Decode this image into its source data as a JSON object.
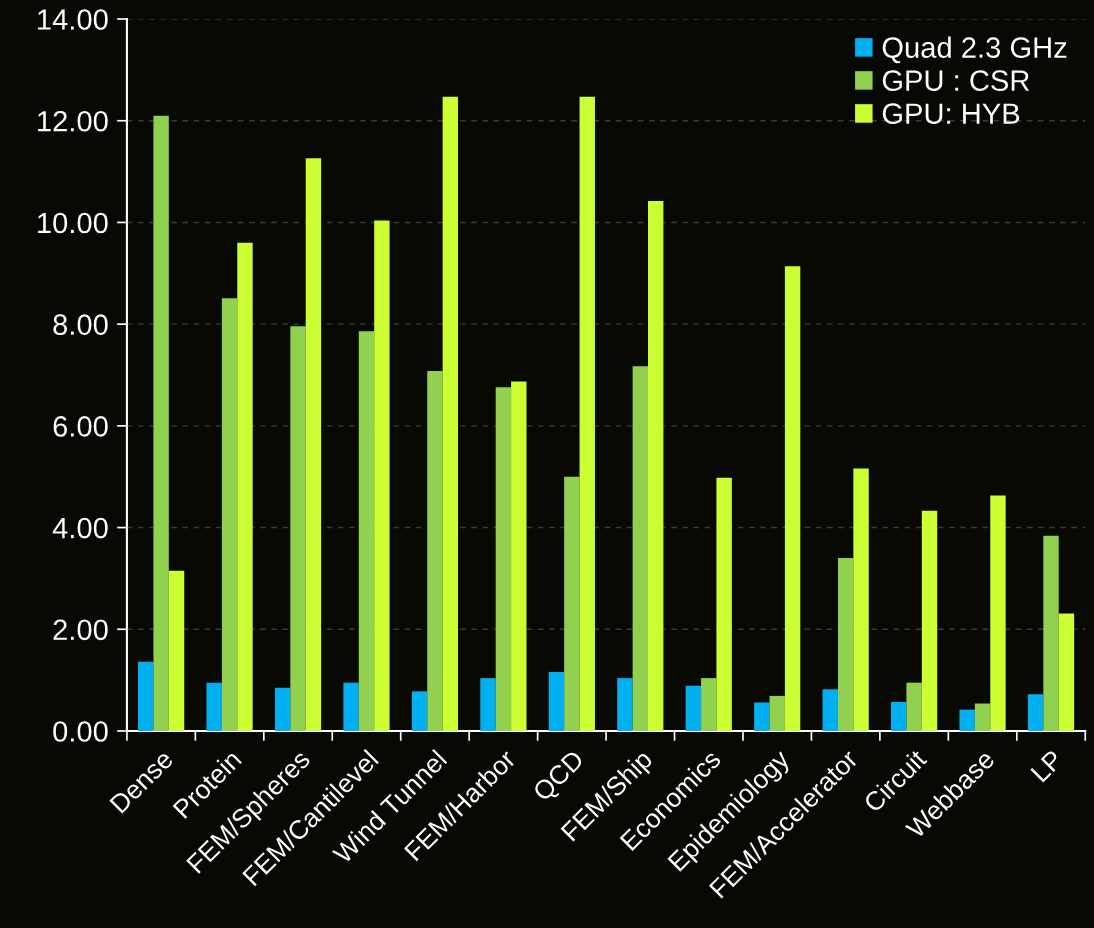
{
  "chart_data": {
    "type": "bar",
    "categories": [
      "Dense",
      "Protein",
      "FEM/Spheres",
      "FEM/Cantilevel",
      "Wind Tunnel",
      "FEM/Harbor",
      "QCD",
      "FEM/Ship",
      "Economics",
      "Epidemiology",
      "FEM/Accelerator",
      "Circuit",
      "Webbase",
      "LP"
    ],
    "series": [
      {
        "name": "Quad 2.3 GHz",
        "color": "#00b0f0",
        "values": [
          1.36,
          0.95,
          0.85,
          0.95,
          0.78,
          1.04,
          1.16,
          1.04,
          0.89,
          0.56,
          0.82,
          0.57,
          0.42,
          0.72
        ]
      },
      {
        "name": "GPU : CSR",
        "color": "#92d050",
        "values": [
          12.1,
          8.51,
          7.96,
          7.86,
          7.08,
          6.76,
          5.0,
          7.17,
          1.04,
          0.69,
          3.4,
          0.95,
          0.54,
          3.84
        ]
      },
      {
        "name": "GPU: HYB",
        "color": "#ccff33",
        "values": [
          3.15,
          9.6,
          11.26,
          10.04,
          12.47,
          6.87,
          12.47,
          10.42,
          4.98,
          9.14,
          5.16,
          4.33,
          4.63,
          2.31
        ]
      }
    ],
    "ylim": [
      0,
      14
    ],
    "yticks": [
      {
        "value": 0,
        "label": "0.00"
      },
      {
        "value": 2,
        "label": "2.00"
      },
      {
        "value": 4,
        "label": "4.00"
      },
      {
        "value": 6,
        "label": "6.00"
      },
      {
        "value": 8,
        "label": "8.00"
      },
      {
        "value": 10,
        "label": "10.00"
      },
      {
        "value": 12,
        "label": "12.00"
      },
      {
        "value": 14,
        "label": "14.00"
      }
    ],
    "grid": "y",
    "legend": "top right"
  }
}
